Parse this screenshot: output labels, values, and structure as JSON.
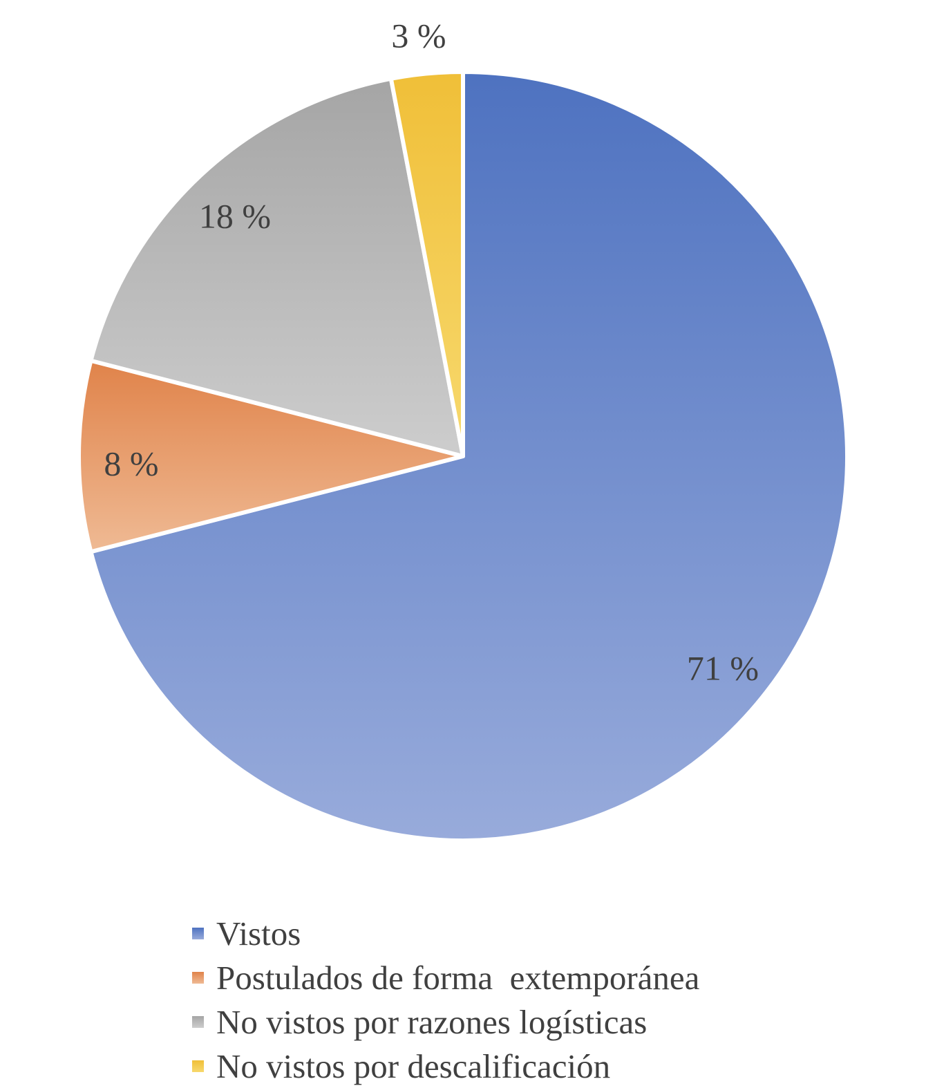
{
  "chart_data": {
    "type": "pie",
    "categories": [
      "Vistos",
      "Postulados de forma  extemporánea",
      "No vistos por razones logísticas",
      "No vistos por descalificación"
    ],
    "values": [
      71,
      8,
      18,
      3
    ],
    "labels": [
      "71 %",
      "8 %",
      "18 %",
      "3 %"
    ],
    "colors": [
      [
        "#4e72c0",
        "#98abdb"
      ],
      [
        "#e0834a",
        "#efba94"
      ],
      [
        "#a5a5a5",
        "#cdcdcd"
      ],
      [
        "#f0bf38",
        "#f7d96e"
      ]
    ],
    "legend_position": "bottom",
    "title": ""
  }
}
